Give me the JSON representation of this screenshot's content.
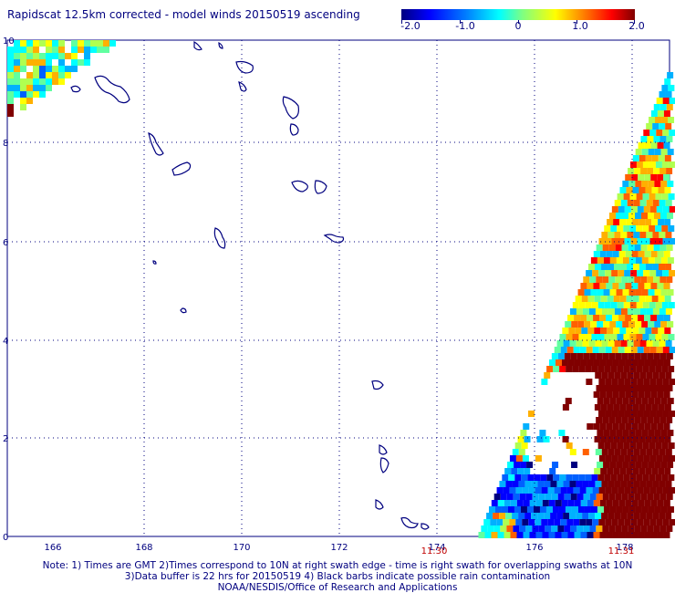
{
  "title": "Rapidscat 12.5km corrected - model winds 20150519 ascending",
  "colorbar": {
    "ticks": [
      "-2.0",
      "-1.0",
      "0",
      "1.0",
      "2.0"
    ],
    "range": [
      -2.0,
      2.0
    ]
  },
  "axes": {
    "x_ticks": [
      "166",
      "168",
      "170",
      "172",
      "174",
      "176",
      "178"
    ],
    "y_ticks": [
      "0",
      "2",
      "4",
      "6",
      "8",
      "10"
    ],
    "xlim": [
      164.8,
      179.0
    ],
    "ylim": [
      0,
      10
    ]
  },
  "times": [
    "11:30",
    "11:31"
  ],
  "notes": [
    "Note: 1) Times are GMT 2)Times correspond to 10N at right swath edge - time is right swath for overlapping swaths at 10N",
    "3)Data buffer is 22 hrs for 20150519 4) Black barbs indicate possible rain contamination",
    "NOAA/NESDIS/Office of Research and Applications"
  ],
  "colors": {
    "text": "#00007f",
    "time_text": "#c00000",
    "coast": "#00007f",
    "grid": "#00007f"
  }
}
